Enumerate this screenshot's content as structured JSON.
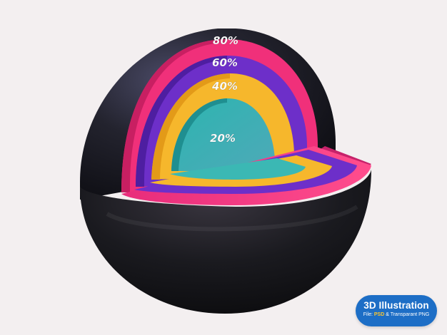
{
  "illustration": {
    "rings": [
      {
        "label": "80%",
        "color": "#f0307a"
      },
      {
        "label": "60%",
        "color": "#6d2fc9"
      },
      {
        "label": "40%",
        "color": "#f6b72c"
      },
      {
        "label": "20%",
        "color": "#2aaeae"
      }
    ],
    "sphere_color": "#1c1c22",
    "background_color": "#f3eff0"
  },
  "badge": {
    "title": "3D Illustration",
    "sub_prefix": "File: ",
    "sub_format1": "PSD",
    "sub_joiner": " & Transparant PNG",
    "color": "#1d6ec6",
    "highlight_color": "#ffc62b"
  }
}
